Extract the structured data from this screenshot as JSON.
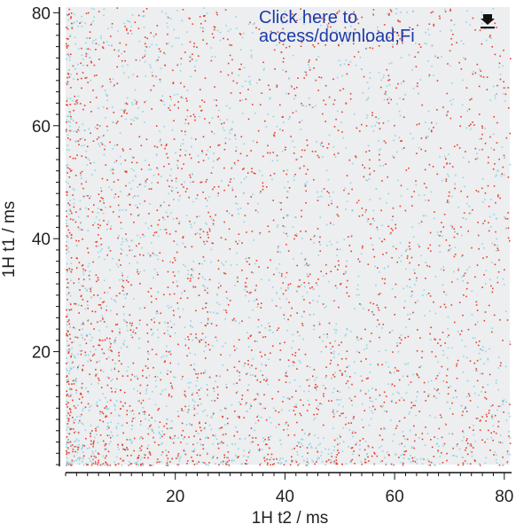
{
  "overlay": {
    "link_line1": "Click here to",
    "link_line2": "access/download;Fi",
    "download_icon": "download-icon",
    "link_color": "#1f3aa8"
  },
  "chart_data": {
    "type": "scatter",
    "title": "",
    "xlabel": "1H t2 / ms",
    "ylabel": "1H t1 / ms",
    "xlim": [
      0,
      81
    ],
    "ylim": [
      0,
      81
    ],
    "x_ticks": [
      20,
      40,
      60,
      80
    ],
    "y_ticks": [
      20,
      40,
      60,
      80
    ],
    "x_tick_labels": [
      "20",
      "40",
      "60",
      "80"
    ],
    "y_tick_labels": [
      "20",
      "40",
      "60",
      "80"
    ],
    "grid": false,
    "background": "#eceef0",
    "point_density": "dense scatter, highest near the origin (small t1 and small t2), thinning toward large t1 and t2",
    "series": [
      {
        "color": "#e8402a",
        "opacity": 1.0
      },
      {
        "color": "#8fd6e3",
        "opacity": 1.0
      }
    ]
  }
}
